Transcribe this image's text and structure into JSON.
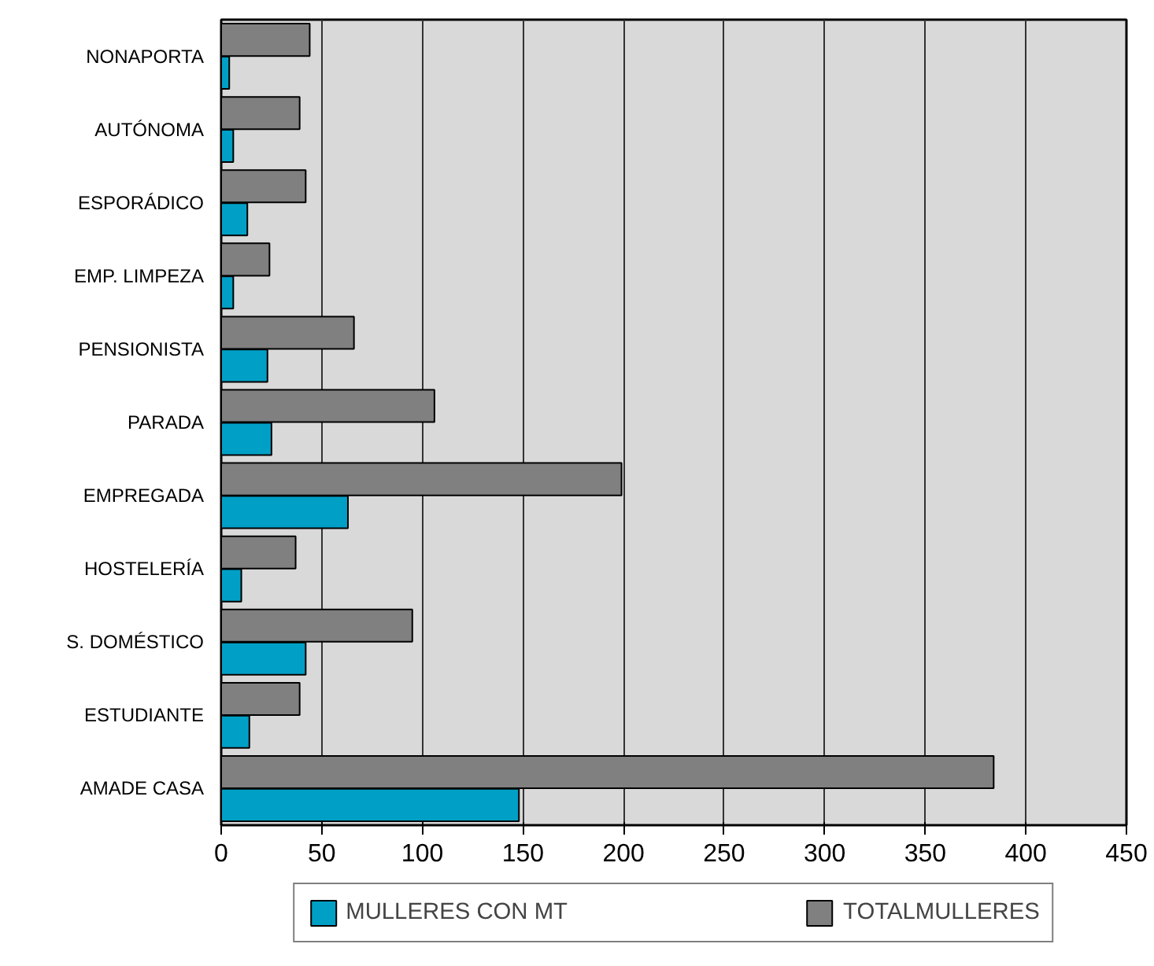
{
  "chart_data": {
    "type": "bar",
    "orientation": "horizontal",
    "categories": [
      "NONAPORTA",
      "AUTÓNOMA",
      "ESPORÁDICO",
      "EMP. LIMPEZA",
      "PENSIONISTA",
      "PARADA",
      "EMPREGADA",
      "HOSTELERÍA",
      "S. DOMÉSTICO",
      "ESTUDIANTE",
      "AMADE CASA"
    ],
    "series": [
      {
        "name": "MULLERES CON MT",
        "color": "#00a0c6",
        "values": [
          4,
          6,
          13,
          6,
          23,
          25,
          63,
          10,
          42,
          14,
          148
        ]
      },
      {
        "name": "TOTALMULLERES",
        "color": "#808080",
        "values": [
          44,
          39,
          42,
          24,
          66,
          106,
          199,
          37,
          95,
          39,
          384
        ]
      }
    ],
    "xlim": [
      0,
      450
    ],
    "xticks": [
      0,
      50,
      100,
      150,
      200,
      250,
      300,
      350,
      400,
      450
    ],
    "grid": "x",
    "legend": "bottom"
  }
}
